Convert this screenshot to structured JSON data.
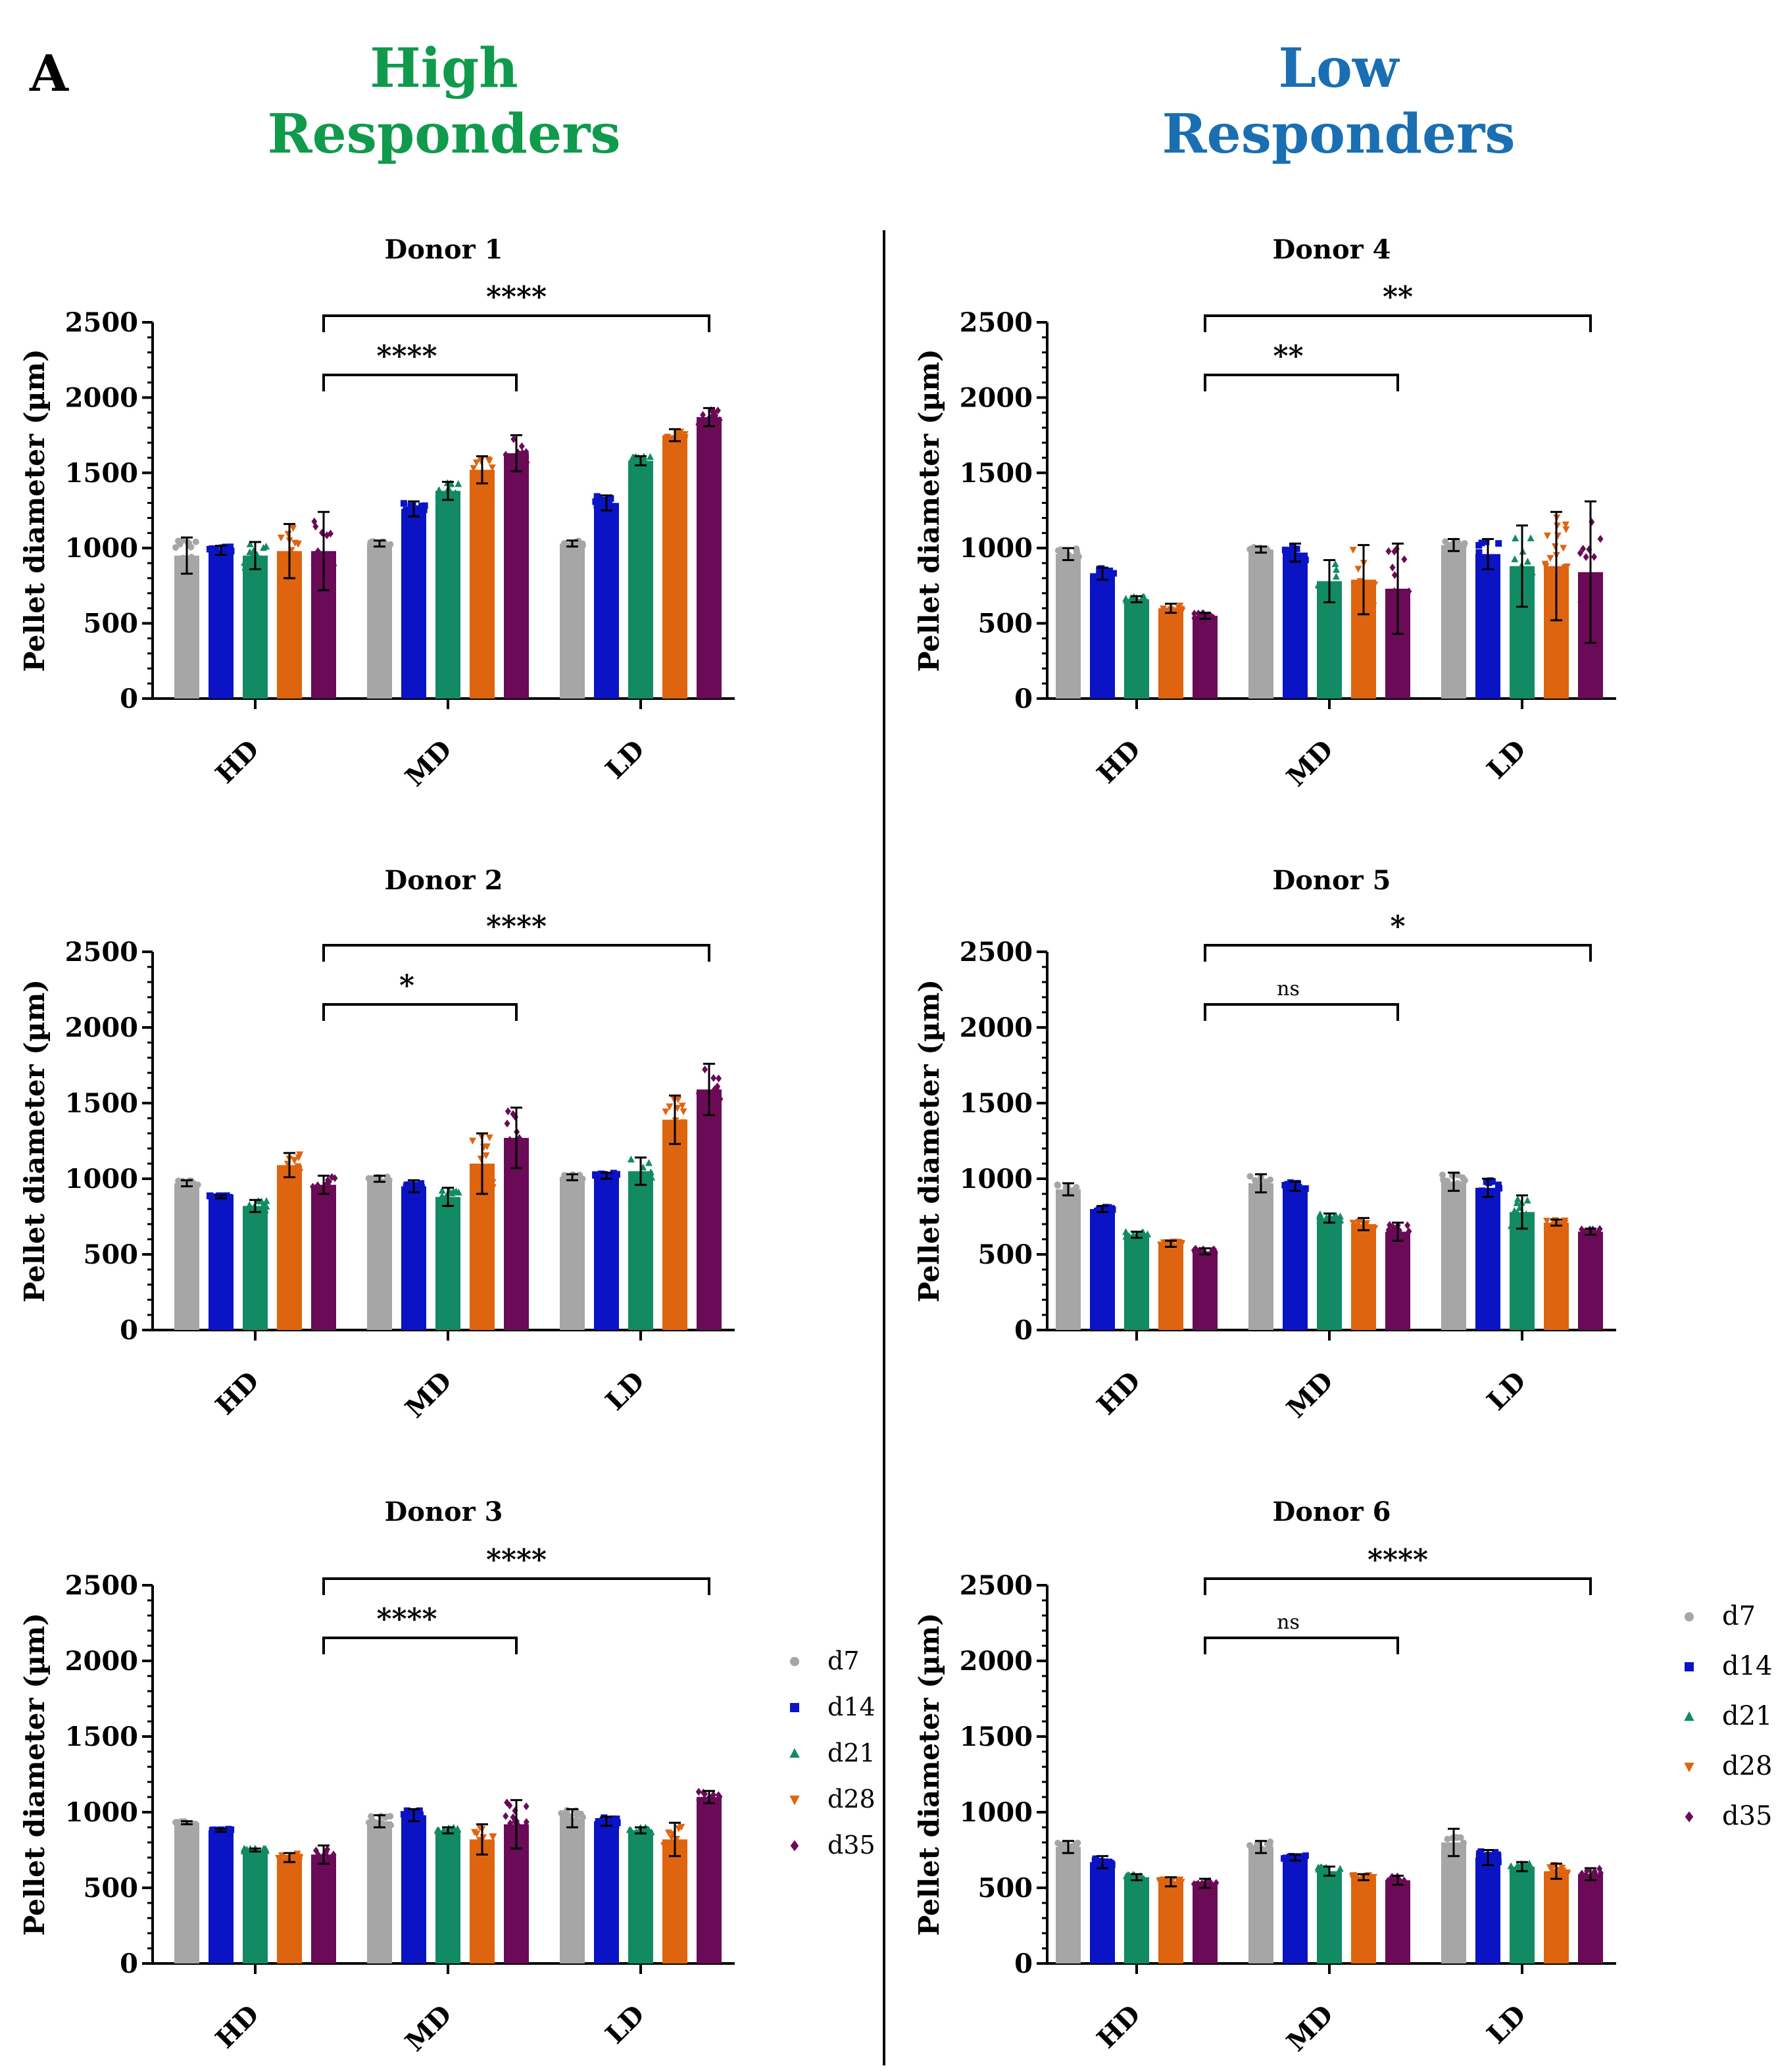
{
  "panel_letter": "A",
  "groups": [
    {
      "title_line1": "High",
      "title_line2": "Responders",
      "color": "#0f9a4c"
    },
    {
      "title_line1": "Low",
      "title_line2": "Responders",
      "color": "#1a6fb3"
    }
  ],
  "legend": {
    "items": [
      {
        "label": "d7",
        "color": "#a6a6a6",
        "marker": "circle"
      },
      {
        "label": "d14",
        "color": "#0a14c4",
        "marker": "square"
      },
      {
        "label": "d21",
        "color": "#128a63",
        "marker": "triangle-up"
      },
      {
        "label": "d28",
        "color": "#de6410",
        "marker": "triangle-down"
      },
      {
        "label": "d35",
        "color": "#6b0a57",
        "marker": "diamond"
      }
    ]
  },
  "chart_data": [
    {
      "type": "bar",
      "title": "Donor 1",
      "ylabel": "Pellet diameter (µm)",
      "ylim": [
        0,
        2500
      ],
      "yticks": [
        0,
        500,
        1000,
        1500,
        2000,
        2500
      ],
      "categories": [
        "HD",
        "MD",
        "LD"
      ],
      "series": [
        {
          "name": "d7",
          "values": [
            950,
            1030,
            1030
          ],
          "err": [
            120,
            20,
            20
          ]
        },
        {
          "name": "d14",
          "values": [
            985,
            1260,
            1300
          ],
          "err": [
            30,
            50,
            50
          ]
        },
        {
          "name": "d21",
          "values": [
            950,
            1380,
            1580
          ],
          "err": [
            90,
            60,
            30
          ]
        },
        {
          "name": "d28",
          "values": [
            980,
            1520,
            1750
          ],
          "err": [
            180,
            90,
            40
          ]
        },
        {
          "name": "d35",
          "values": [
            980,
            1630,
            1870
          ],
          "err": [
            260,
            120,
            60
          ]
        }
      ],
      "brackets": [
        {
          "label": "****",
          "from": "HD-d35",
          "to": "MD-d35"
        },
        {
          "label": "****",
          "from": "HD-d35",
          "to": "LD-d35"
        }
      ]
    },
    {
      "type": "bar",
      "title": "Donor 2",
      "ylabel": "Pellet diameter (µm)",
      "ylim": [
        0,
        2500
      ],
      "yticks": [
        0,
        500,
        1000,
        1500,
        2000,
        2500
      ],
      "categories": [
        "HD",
        "MD",
        "LD"
      ],
      "series": [
        {
          "name": "d7",
          "values": [
            970,
            1000,
            1010
          ],
          "err": [
            20,
            20,
            20
          ]
        },
        {
          "name": "d14",
          "values": [
            880,
            950,
            1020
          ],
          "err": [
            10,
            40,
            20
          ]
        },
        {
          "name": "d21",
          "values": [
            820,
            880,
            1050
          ],
          "err": [
            40,
            60,
            90
          ]
        },
        {
          "name": "d28",
          "values": [
            1090,
            1100,
            1390
          ],
          "err": [
            80,
            200,
            160
          ]
        },
        {
          "name": "d35",
          "values": [
            960,
            1270,
            1590
          ],
          "err": [
            60,
            200,
            170
          ]
        }
      ],
      "brackets": [
        {
          "label": "*",
          "from": "HD-d35",
          "to": "MD-d35"
        },
        {
          "label": "****",
          "from": "HD-d35",
          "to": "LD-d35"
        }
      ]
    },
    {
      "type": "bar",
      "title": "Donor 3",
      "ylabel": "Pellet diameter (µm)",
      "ylim": [
        0,
        2500
      ],
      "yticks": [
        0,
        500,
        1000,
        1500,
        2000,
        2500
      ],
      "categories": [
        "HD",
        "MD",
        "LD"
      ],
      "series": [
        {
          "name": "d7",
          "values": [
            930,
            940,
            960
          ],
          "err": [
            10,
            40,
            60
          ]
        },
        {
          "name": "d14",
          "values": [
            880,
            980,
            940
          ],
          "err": [
            10,
            40,
            30
          ]
        },
        {
          "name": "d21",
          "values": [
            750,
            880,
            880
          ],
          "err": [
            10,
            20,
            20
          ]
        },
        {
          "name": "d28",
          "values": [
            700,
            820,
            820
          ],
          "err": [
            30,
            100,
            110
          ]
        },
        {
          "name": "d35",
          "values": [
            720,
            920,
            1100
          ],
          "err": [
            60,
            160,
            40
          ]
        }
      ],
      "brackets": [
        {
          "label": "****",
          "from": "HD-d35",
          "to": "MD-d35"
        },
        {
          "label": "****",
          "from": "HD-d35",
          "to": "LD-d35"
        }
      ]
    },
    {
      "type": "bar",
      "title": "Donor 4",
      "ylabel": "Pellet diameter (µm)",
      "ylim": [
        0,
        2500
      ],
      "yticks": [
        0,
        500,
        1000,
        1500,
        2000,
        2500
      ],
      "categories": [
        "HD",
        "MD",
        "LD"
      ],
      "series": [
        {
          "name": "d7",
          "values": [
            960,
            990,
            1020
          ],
          "err": [
            40,
            20,
            40
          ]
        },
        {
          "name": "d14",
          "values": [
            830,
            970,
            960
          ],
          "err": [
            40,
            60,
            100
          ]
        },
        {
          "name": "d21",
          "values": [
            660,
            780,
            880
          ],
          "err": [
            20,
            140,
            270
          ]
        },
        {
          "name": "d28",
          "values": [
            600,
            790,
            880
          ],
          "err": [
            30,
            230,
            360
          ]
        },
        {
          "name": "d35",
          "values": [
            550,
            730,
            840
          ],
          "err": [
            20,
            300,
            470
          ]
        }
      ],
      "brackets": [
        {
          "label": "**",
          "from": "HD-d35",
          "to": "MD-d35"
        },
        {
          "label": "**",
          "from": "HD-d35",
          "to": "LD-d35"
        }
      ]
    },
    {
      "type": "bar",
      "title": "Donor 5",
      "ylabel": "Pellet diameter (µm)",
      "ylim": [
        0,
        2500
      ],
      "yticks": [
        0,
        500,
        1000,
        1500,
        2000,
        2500
      ],
      "categories": [
        "HD",
        "MD",
        "LD"
      ],
      "series": [
        {
          "name": "d7",
          "values": [
            930,
            970,
            980
          ],
          "err": [
            40,
            60,
            60
          ]
        },
        {
          "name": "d14",
          "values": [
            800,
            950,
            940
          ],
          "err": [
            20,
            30,
            60
          ]
        },
        {
          "name": "d21",
          "values": [
            630,
            740,
            780
          ],
          "err": [
            20,
            30,
            110
          ]
        },
        {
          "name": "d28",
          "values": [
            570,
            700,
            710
          ],
          "err": [
            20,
            40,
            20
          ]
        },
        {
          "name": "d35",
          "values": [
            520,
            650,
            650
          ],
          "err": [
            20,
            60,
            20
          ]
        }
      ],
      "brackets": [
        {
          "label": "ns",
          "from": "HD-d35",
          "to": "MD-d35"
        },
        {
          "label": "*",
          "from": "HD-d35",
          "to": "LD-d35"
        }
      ]
    },
    {
      "type": "bar",
      "title": "Donor 6",
      "ylabel": "Pellet diameter (µm)",
      "ylim": [
        0,
        2500
      ],
      "yticks": [
        0,
        500,
        1000,
        1500,
        2000,
        2500
      ],
      "categories": [
        "HD",
        "MD",
        "LD"
      ],
      "series": [
        {
          "name": "d7",
          "values": [
            770,
            770,
            800
          ],
          "err": [
            40,
            40,
            90
          ]
        },
        {
          "name": "d14",
          "values": [
            670,
            700,
            700
          ],
          "err": [
            40,
            20,
            50
          ]
        },
        {
          "name": "d21",
          "values": [
            570,
            610,
            640
          ],
          "err": [
            20,
            30,
            30
          ]
        },
        {
          "name": "d28",
          "values": [
            540,
            570,
            610
          ],
          "err": [
            30,
            20,
            50
          ]
        },
        {
          "name": "d35",
          "values": [
            530,
            550,
            590
          ],
          "err": [
            30,
            30,
            40
          ]
        }
      ],
      "brackets": [
        {
          "label": "ns",
          "from": "HD-d35",
          "to": "MD-d35"
        },
        {
          "label": "****",
          "from": "HD-d35",
          "to": "LD-d35"
        }
      ]
    }
  ]
}
